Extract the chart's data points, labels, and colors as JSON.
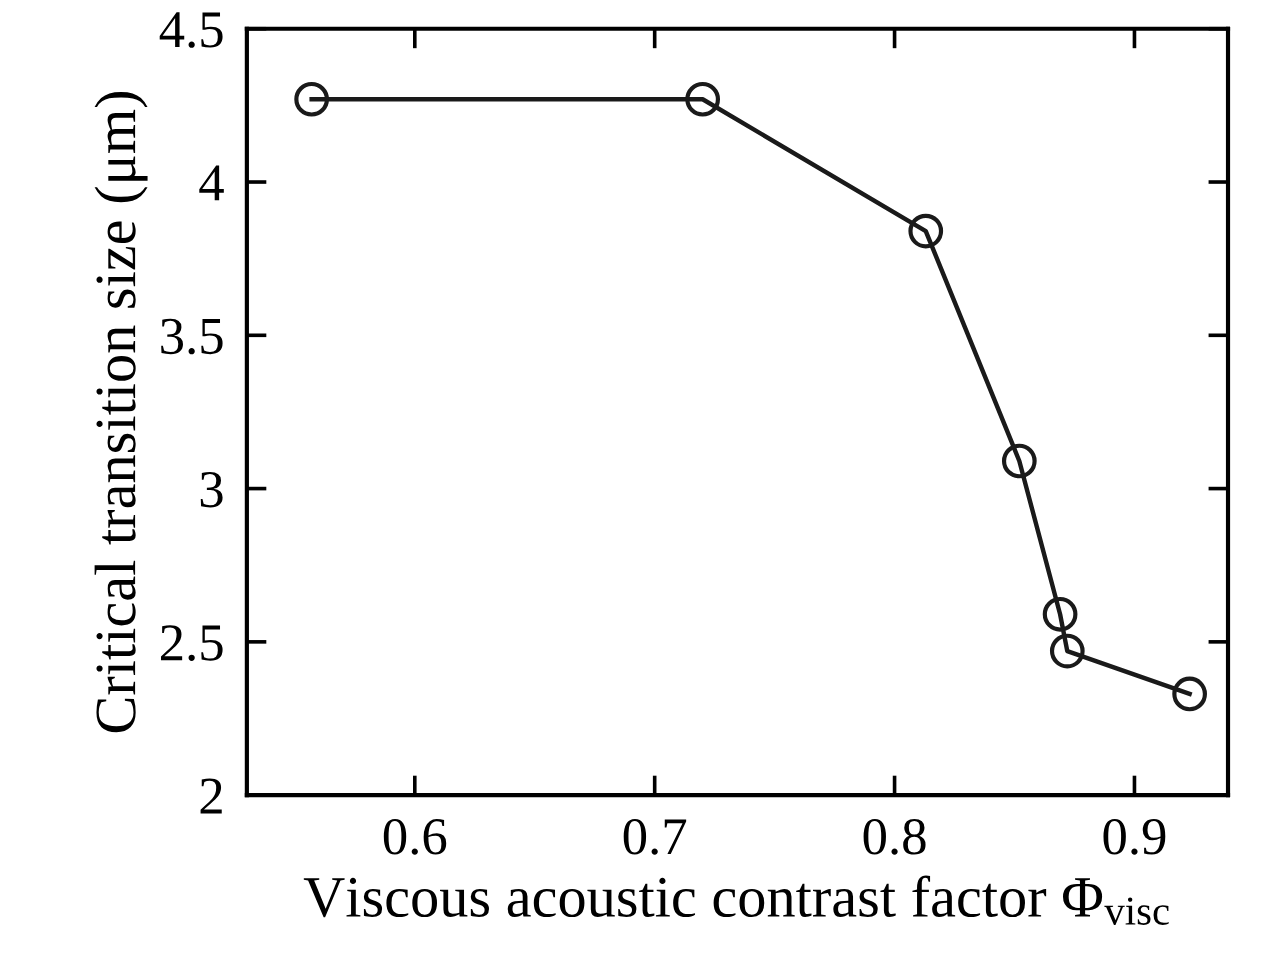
{
  "chart_data": {
    "type": "line",
    "xlabel": "Viscous acoustic contrast factor Φ$_{visc}$",
    "ylabel": "Critical transition size (μm)",
    "x": [
      0.557,
      0.72,
      0.813,
      0.852,
      0.869,
      0.872,
      0.923
    ],
    "series": [
      {
        "color": "#1a1a1a",
        "values": [
          4.27,
          4.27,
          3.84,
          3.09,
          2.59,
          2.47,
          2.33
        ]
      }
    ],
    "xlim": [
      0.53,
      0.939
    ],
    "xticks": [
      0.6,
      0.7,
      0.8,
      0.9
    ],
    "ylim": [
      2,
      4.5
    ],
    "yticks": [
      2,
      2.5,
      3,
      3.5,
      4,
      4.5
    ],
    "marker": "circle",
    "line_style": "solid",
    "grid": false,
    "legend": false
  }
}
